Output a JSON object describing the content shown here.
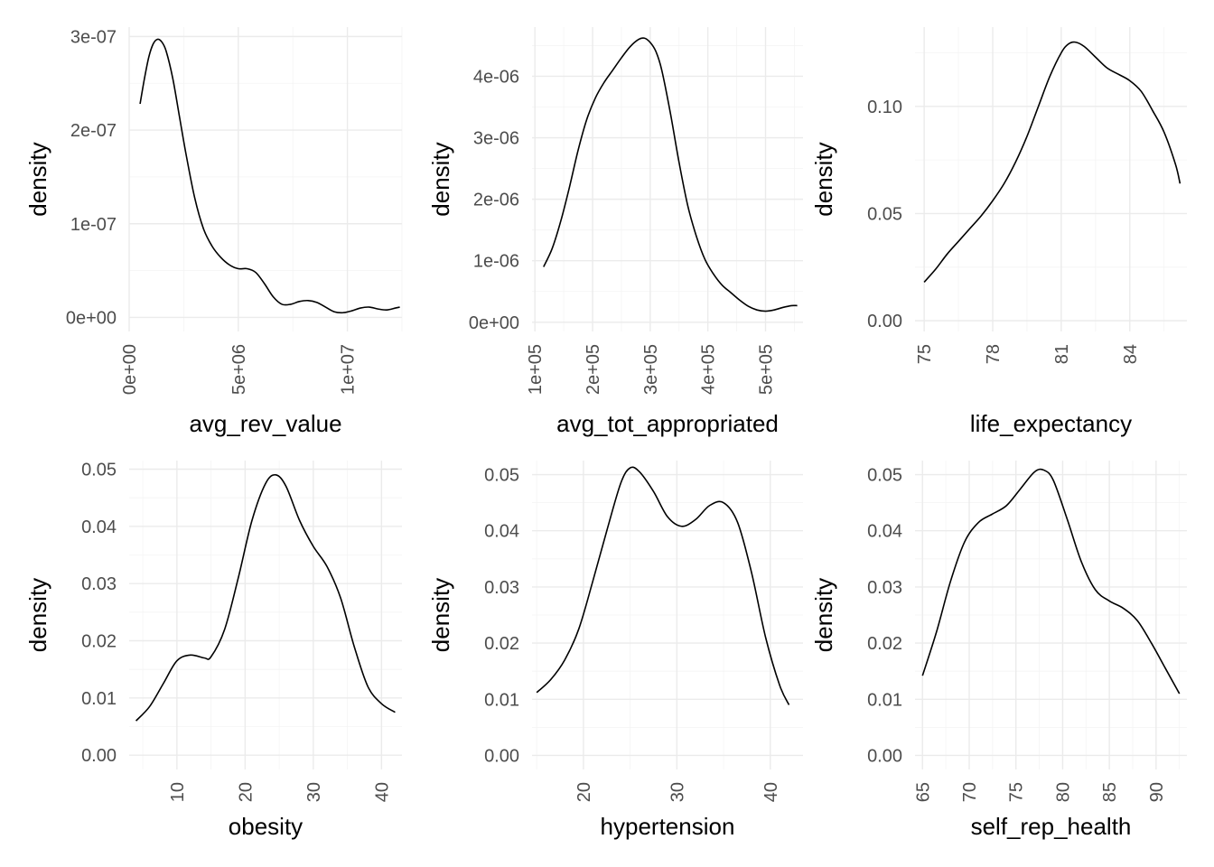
{
  "chart_data": [
    {
      "type": "line",
      "xlabel": "avg_rev_value",
      "ylabel": "density",
      "xlim": [
        0,
        12500000
      ],
      "ylim": [
        -1.5e-08,
        3.1e-07
      ],
      "grid": true,
      "x_ticks": [
        {
          "value": 0,
          "label": "0e+00"
        },
        {
          "value": 5000000,
          "label": "5e+06"
        },
        {
          "value": 10000000,
          "label": "1e+07"
        }
      ],
      "y_ticks": [
        {
          "value": 0,
          "label": "0e+00"
        },
        {
          "value": 1e-07,
          "label": "1e-07"
        },
        {
          "value": 2e-07,
          "label": "2e-07"
        },
        {
          "value": 3e-07,
          "label": "3e-07"
        }
      ],
      "series": [
        {
          "x": [
            500000,
            700000,
            900000,
            1100000,
            1300000,
            1500000,
            1700000,
            2000000,
            2300000,
            2600000,
            3000000,
            3400000,
            3800000,
            4200000,
            4600000,
            5000000,
            5400000,
            5800000,
            6200000,
            6600000,
            7000000,
            7400000,
            7800000,
            8200000,
            8600000,
            9000000,
            9400000,
            9800000,
            10200000,
            10600000,
            11000000,
            11400000,
            11800000,
            12200000,
            12400000
          ],
          "y": [
            2.28e-07,
            2.55e-07,
            2.78e-07,
            2.92e-07,
            2.97e-07,
            2.94e-07,
            2.84e-07,
            2.55e-07,
            2.15e-07,
            1.75e-07,
            1.28e-07,
            9.5e-08,
            7.6e-08,
            6.4e-08,
            5.6e-08,
            5.2e-08,
            5.2e-08,
            4.8e-08,
            3.6e-08,
            2.2e-08,
            1.4e-08,
            1.4e-08,
            1.7e-08,
            1.8e-08,
            1.6e-08,
            1.1e-08,
            6e-09,
            5e-09,
            7e-09,
            1e-08,
            1.1e-08,
            9e-09,
            8e-09,
            1e-08,
            1.1e-08
          ]
        }
      ]
    },
    {
      "type": "line",
      "xlabel": "avg_tot_appropriated",
      "ylabel": "density",
      "xlim": [
        95000,
        565000
      ],
      "ylim": [
        -1.5e-07,
        4.8e-06
      ],
      "grid": true,
      "x_ticks": [
        {
          "value": 100000,
          "label": "1e+05"
        },
        {
          "value": 200000,
          "label": "2e+05"
        },
        {
          "value": 300000,
          "label": "3e+05"
        },
        {
          "value": 400000,
          "label": "4e+05"
        },
        {
          "value": 500000,
          "label": "5e+05"
        }
      ],
      "y_ticks": [
        {
          "value": 0,
          "label": "0e+00"
        },
        {
          "value": 1e-06,
          "label": "1e-06"
        },
        {
          "value": 2e-06,
          "label": "2e-06"
        },
        {
          "value": 3e-06,
          "label": "3e-06"
        },
        {
          "value": 4e-06,
          "label": "4e-06"
        }
      ],
      "series": [
        {
          "x": [
            115000,
            130000,
            145000,
            160000,
            175000,
            190000,
            205000,
            220000,
            235000,
            250000,
            265000,
            280000,
            290000,
            300000,
            310000,
            320000,
            335000,
            350000,
            365000,
            380000,
            395000,
            410000,
            425000,
            440000,
            455000,
            470000,
            485000,
            500000,
            515000,
            530000,
            545000,
            555000
          ],
          "y": [
            9e-07,
            1.2e-06,
            1.65e-06,
            2.2e-06,
            2.8e-06,
            3.3e-06,
            3.65e-06,
            3.9e-06,
            4.1e-06,
            4.3e-06,
            4.48e-06,
            4.6e-06,
            4.62e-06,
            4.55e-06,
            4.4e-06,
            4.1e-06,
            3.4e-06,
            2.6e-06,
            1.9e-06,
            1.4e-06,
            1.02e-06,
            7.8e-07,
            6e-07,
            4.8e-07,
            3.6e-07,
            2.6e-07,
            2e-07,
            1.8e-07,
            2e-07,
            2.4e-07,
            2.7e-07,
            2.7e-07
          ]
        }
      ]
    },
    {
      "type": "line",
      "xlabel": "life_expectancy",
      "ylabel": "density",
      "xlim": [
        74.6,
        86.5
      ],
      "ylim": [
        -0.005,
        0.137
      ],
      "grid": true,
      "x_ticks": [
        {
          "value": 75,
          "label": "75"
        },
        {
          "value": 78,
          "label": "78"
        },
        {
          "value": 81,
          "label": "81"
        },
        {
          "value": 84,
          "label": "84"
        }
      ],
      "y_ticks": [
        {
          "value": 0,
          "label": "0.00"
        },
        {
          "value": 0.05,
          "label": "0.05"
        },
        {
          "value": 0.1,
          "label": "0.10"
        }
      ],
      "series": [
        {
          "x": [
            75.0,
            75.5,
            76.0,
            76.5,
            77.0,
            77.5,
            78.0,
            78.5,
            79.0,
            79.5,
            80.0,
            80.5,
            81.0,
            81.3,
            81.6,
            82.0,
            82.5,
            83.0,
            83.5,
            84.0,
            84.5,
            85.0,
            85.5,
            86.0,
            86.2
          ],
          "y": [
            0.018,
            0.024,
            0.031,
            0.037,
            0.043,
            0.049,
            0.056,
            0.064,
            0.074,
            0.086,
            0.1,
            0.114,
            0.125,
            0.129,
            0.13,
            0.128,
            0.123,
            0.118,
            0.115,
            0.112,
            0.107,
            0.098,
            0.088,
            0.073,
            0.064
          ]
        }
      ]
    },
    {
      "type": "line",
      "xlabel": "obesity",
      "ylabel": "density",
      "xlim": [
        3,
        43
      ],
      "ylim": [
        -0.0025,
        0.0515
      ],
      "grid": true,
      "x_ticks": [
        {
          "value": 10,
          "label": "10"
        },
        {
          "value": 20,
          "label": "20"
        },
        {
          "value": 30,
          "label": "30"
        },
        {
          "value": 40,
          "label": "40"
        }
      ],
      "y_ticks": [
        {
          "value": 0,
          "label": "0.00"
        },
        {
          "value": 0.01,
          "label": "0.01"
        },
        {
          "value": 0.02,
          "label": "0.02"
        },
        {
          "value": 0.03,
          "label": "0.03"
        },
        {
          "value": 0.04,
          "label": "0.04"
        },
        {
          "value": 0.05,
          "label": "0.05"
        }
      ],
      "series": [
        {
          "x": [
            4,
            6,
            8,
            10,
            12,
            14,
            15,
            17,
            19,
            21,
            23,
            24.5,
            26,
            28,
            30,
            32,
            34,
            36,
            38,
            40,
            42
          ],
          "y": [
            0.006,
            0.0085,
            0.0125,
            0.0165,
            0.0175,
            0.017,
            0.0172,
            0.022,
            0.031,
            0.041,
            0.0475,
            0.049,
            0.047,
            0.041,
            0.0365,
            0.033,
            0.0275,
            0.019,
            0.012,
            0.009,
            0.0075
          ]
        }
      ]
    },
    {
      "type": "line",
      "xlabel": "hypertension",
      "ylabel": "density",
      "xlim": [
        14.5,
        43.5
      ],
      "ylim": [
        -0.0025,
        0.0525
      ],
      "grid": true,
      "x_ticks": [
        {
          "value": 20,
          "label": "20"
        },
        {
          "value": 30,
          "label": "30"
        },
        {
          "value": 40,
          "label": "40"
        }
      ],
      "y_ticks": [
        {
          "value": 0,
          "label": "0.00"
        },
        {
          "value": 0.01,
          "label": "0.01"
        },
        {
          "value": 0.02,
          "label": "0.02"
        },
        {
          "value": 0.03,
          "label": "0.03"
        },
        {
          "value": 0.04,
          "label": "0.04"
        },
        {
          "value": 0.05,
          "label": "0.05"
        }
      ],
      "series": [
        {
          "x": [
            15,
            16.5,
            18,
            19.5,
            21,
            22.5,
            24,
            25,
            26,
            27.5,
            29,
            30.5,
            32,
            33.5,
            35,
            36.5,
            38,
            39.5,
            41,
            42
          ],
          "y": [
            0.0112,
            0.0135,
            0.017,
            0.0225,
            0.031,
            0.04,
            0.0485,
            0.0512,
            0.0505,
            0.047,
            0.0425,
            0.0408,
            0.042,
            0.0445,
            0.045,
            0.0415,
            0.0325,
            0.021,
            0.0125,
            0.009
          ]
        }
      ]
    },
    {
      "type": "line",
      "xlabel": "self_rep_health",
      "ylabel": "density",
      "xlim": [
        64.2,
        93.3
      ],
      "ylim": [
        -0.0025,
        0.0525
      ],
      "grid": true,
      "x_ticks": [
        {
          "value": 65,
          "label": "65"
        },
        {
          "value": 70,
          "label": "70"
        },
        {
          "value": 75,
          "label": "75"
        },
        {
          "value": 80,
          "label": "80"
        },
        {
          "value": 85,
          "label": "85"
        },
        {
          "value": 90,
          "label": "90"
        }
      ],
      "y_ticks": [
        {
          "value": 0,
          "label": "0.00"
        },
        {
          "value": 0.01,
          "label": "0.01"
        },
        {
          "value": 0.02,
          "label": "0.02"
        },
        {
          "value": 0.03,
          "label": "0.03"
        },
        {
          "value": 0.04,
          "label": "0.04"
        },
        {
          "value": 0.05,
          "label": "0.05"
        }
      ],
      "series": [
        {
          "x": [
            65,
            66.5,
            68,
            69.5,
            71,
            72.5,
            74,
            75.5,
            77,
            78,
            79,
            80.5,
            82,
            83.5,
            85,
            86.5,
            88,
            89.5,
            91,
            92.5
          ],
          "y": [
            0.0142,
            0.022,
            0.031,
            0.038,
            0.0415,
            0.043,
            0.0445,
            0.0475,
            0.0505,
            0.0508,
            0.049,
            0.042,
            0.0345,
            0.0295,
            0.0275,
            0.0262,
            0.024,
            0.02,
            0.0155,
            0.011
          ]
        }
      ]
    }
  ]
}
